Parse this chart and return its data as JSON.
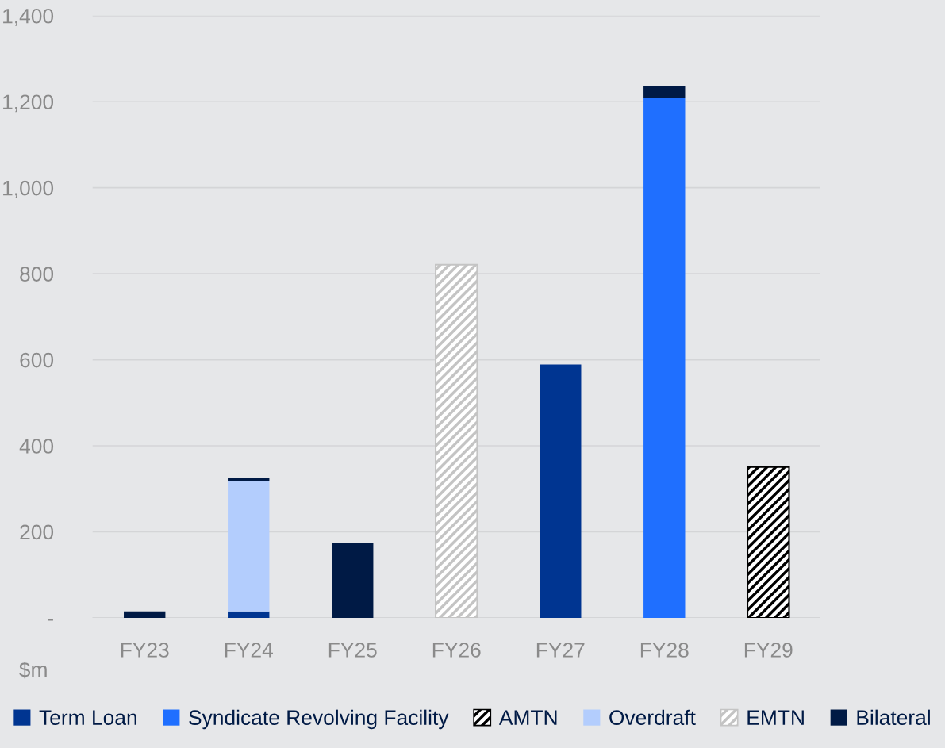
{
  "chart_data": {
    "type": "bar",
    "stacked": true,
    "ylabel": "$m",
    "categories": [
      "FY23",
      "FY24",
      "FY25",
      "FY26",
      "FY27",
      "FY28",
      "FY29"
    ],
    "series": [
      {
        "name": "Term Loan",
        "color": "#003591",
        "values": [
          null,
          15,
          null,
          null,
          589,
          null,
          null
        ]
      },
      {
        "name": "Syndicate Revolving Facility",
        "color": "#1f6fff",
        "values": [
          null,
          null,
          null,
          null,
          null,
          1209,
          null
        ]
      },
      {
        "name": "AMTN",
        "color": "#000000",
        "values": [
          null,
          null,
          null,
          null,
          null,
          null,
          351
        ]
      },
      {
        "name": "Overdraft",
        "color": "#b3cdfd",
        "values": [
          null,
          304,
          null,
          null,
          null,
          null,
          null
        ]
      },
      {
        "name": "EMTN",
        "color": "#c4c4c4",
        "values": [
          null,
          null,
          null,
          821,
          null,
          null,
          null
        ]
      },
      {
        "name": "Bilateral",
        "color": "#001a45",
        "values": [
          15,
          6,
          175,
          null,
          null,
          28,
          null
        ]
      }
    ],
    "ylim": [
      0,
      1400
    ],
    "yticks": [
      {
        "value": 0,
        "label": "-"
      },
      200,
      400,
      600,
      800,
      {
        "value": 1000,
        "label": "1,000"
      },
      {
        "value": 1200,
        "label": "1,200"
      },
      {
        "value": 1400,
        "label": "1,400"
      }
    ],
    "grid": "y",
    "legend": "bottom"
  }
}
